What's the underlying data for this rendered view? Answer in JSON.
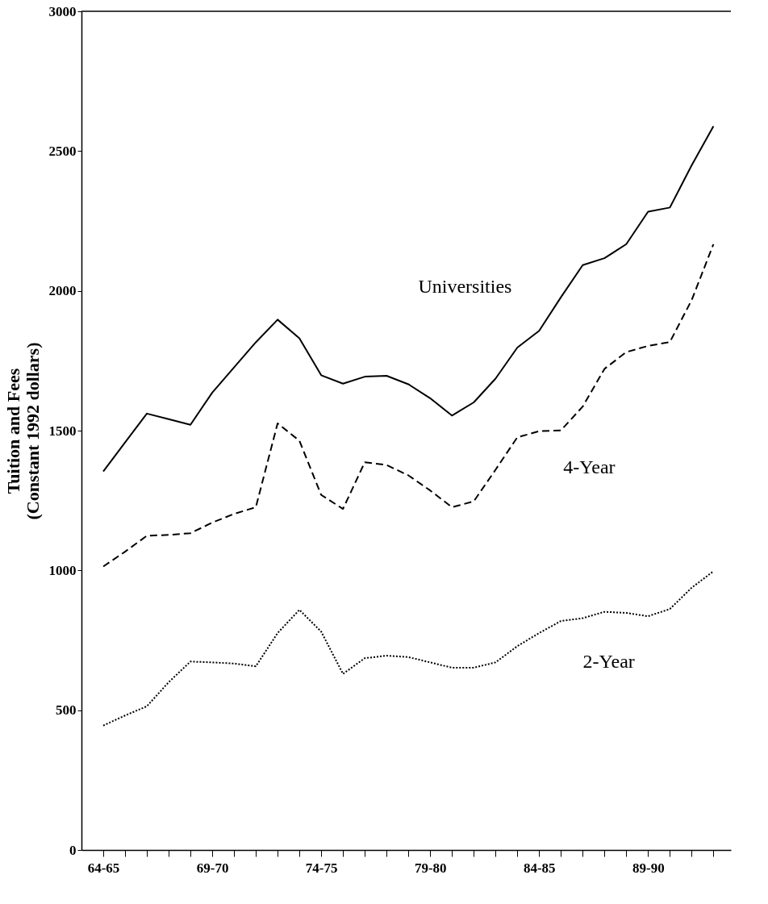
{
  "chart_data": {
    "type": "line",
    "ylabel": "Tuition and Fees (Constant 1992 dollars)",
    "categories": [
      "64-65",
      null,
      null,
      null,
      null,
      "69-70",
      null,
      null,
      null,
      null,
      "74-75",
      null,
      null,
      null,
      null,
      "79-80",
      null,
      null,
      null,
      null,
      "84-85",
      null,
      null,
      null,
      null,
      "89-90",
      null,
      null,
      null
    ],
    "series": [
      {
        "name": "Universities",
        "color": "#000000",
        "line_style": "solid",
        "values": [
          1354,
          1458,
          1561,
          1541,
          1521,
          1636,
          1726,
          1816,
          1897,
          1830,
          1698,
          1668,
          1693,
          1696,
          1666,
          1616,
          1554,
          1601,
          1686,
          1797,
          1857,
          1977,
          2092,
          2117,
          2167,
          2283,
          2298,
          2449,
          2589
        ]
      },
      {
        "name": "4-Year",
        "color": "#000000",
        "line_style": "dashed",
        "values": [
          1014,
          1067,
          1124,
          1127,
          1133,
          1171,
          1202,
          1226,
          1526,
          1464,
          1270,
          1220,
          1387,
          1377,
          1340,
          1286,
          1226,
          1247,
          1360,
          1476,
          1498,
          1501,
          1586,
          1721,
          1781,
          1803,
          1817,
          1967,
          2167
        ]
      },
      {
        "name": "2-Year",
        "color": "#000000",
        "line_style": "dotted",
        "values": [
          445,
          481,
          514,
          600,
          674,
          671,
          667,
          657,
          776,
          859,
          781,
          630,
          686,
          695,
          690,
          671,
          652,
          652,
          671,
          729,
          776,
          819,
          829,
          852,
          848,
          836,
          862,
          938,
          997
        ]
      }
    ],
    "ylim": [
      0,
      3000
    ],
    "yticks": [
      0,
      500,
      1000,
      1500,
      2000,
      2500,
      3000
    ],
    "grid": false,
    "marker": "none"
  }
}
